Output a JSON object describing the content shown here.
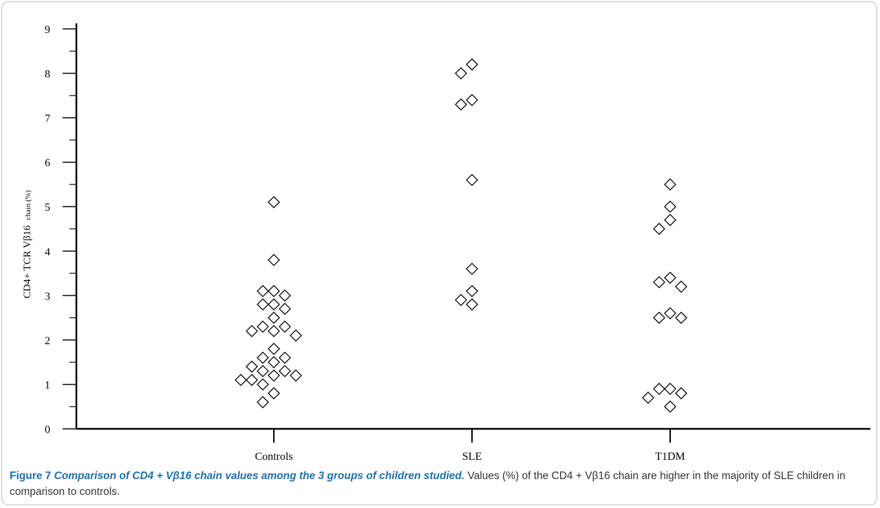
{
  "chart_data": {
    "type": "scatter",
    "title": "",
    "xlabel": "",
    "ylabel": "CD4+ TCR Vβ16 chain (%)",
    "ylabel_parts": {
      "main": "CD4+ TCR Vβ16",
      "sub": "chain (%)"
    },
    "categories": [
      "Controls",
      "SLE",
      "T1DM"
    ],
    "ylim": [
      0,
      9
    ],
    "yticks": [
      0,
      1,
      2,
      3,
      4,
      5,
      6,
      7,
      8,
      9
    ],
    "marker": "open-diamond",
    "points": [
      {
        "group": "Controls",
        "y": 5.1
      },
      {
        "group": "Controls",
        "y": 3.8
      },
      {
        "group": "Controls",
        "y": 3.1
      },
      {
        "group": "Controls",
        "y": 3.1
      },
      {
        "group": "Controls",
        "y": 3.0
      },
      {
        "group": "Controls",
        "y": 2.8
      },
      {
        "group": "Controls",
        "y": 2.8
      },
      {
        "group": "Controls",
        "y": 2.7
      },
      {
        "group": "Controls",
        "y": 2.5
      },
      {
        "group": "Controls",
        "y": 2.3
      },
      {
        "group": "Controls",
        "y": 2.3
      },
      {
        "group": "Controls",
        "y": 2.2
      },
      {
        "group": "Controls",
        "y": 2.2
      },
      {
        "group": "Controls",
        "y": 2.1
      },
      {
        "group": "Controls",
        "y": 1.8
      },
      {
        "group": "Controls",
        "y": 1.6
      },
      {
        "group": "Controls",
        "y": 1.6
      },
      {
        "group": "Controls",
        "y": 1.5
      },
      {
        "group": "Controls",
        "y": 1.4
      },
      {
        "group": "Controls",
        "y": 1.3
      },
      {
        "group": "Controls",
        "y": 1.3
      },
      {
        "group": "Controls",
        "y": 1.2
      },
      {
        "group": "Controls",
        "y": 1.2
      },
      {
        "group": "Controls",
        "y": 1.1
      },
      {
        "group": "Controls",
        "y": 1.1
      },
      {
        "group": "Controls",
        "y": 1.0
      },
      {
        "group": "Controls",
        "y": 0.8
      },
      {
        "group": "Controls",
        "y": 0.6
      },
      {
        "group": "SLE",
        "y": 8.2
      },
      {
        "group": "SLE",
        "y": 8.0
      },
      {
        "group": "SLE",
        "y": 7.4
      },
      {
        "group": "SLE",
        "y": 7.3
      },
      {
        "group": "SLE",
        "y": 5.6
      },
      {
        "group": "SLE",
        "y": 3.6
      },
      {
        "group": "SLE",
        "y": 3.1
      },
      {
        "group": "SLE",
        "y": 2.9
      },
      {
        "group": "SLE",
        "y": 2.8
      },
      {
        "group": "T1DM",
        "y": 5.5
      },
      {
        "group": "T1DM",
        "y": 5.0
      },
      {
        "group": "T1DM",
        "y": 4.7
      },
      {
        "group": "T1DM",
        "y": 4.5
      },
      {
        "group": "T1DM",
        "y": 3.4
      },
      {
        "group": "T1DM",
        "y": 3.3
      },
      {
        "group": "T1DM",
        "y": 3.2
      },
      {
        "group": "T1DM",
        "y": 2.6
      },
      {
        "group": "T1DM",
        "y": 2.5
      },
      {
        "group": "T1DM",
        "y": 2.5
      },
      {
        "group": "T1DM",
        "y": 0.9
      },
      {
        "group": "T1DM",
        "y": 0.9
      },
      {
        "group": "T1DM",
        "y": 0.8
      },
      {
        "group": "T1DM",
        "y": 0.7
      },
      {
        "group": "T1DM",
        "y": 0.5
      }
    ]
  },
  "caption": {
    "label": "Figure 7",
    "title": "Comparison of CD4 + Vβ16 chain values among the 3 groups of children studied.",
    "text": "Values (%) of the CD4 + Vβ16 chain are higher in the majority of SLE children in comparison to controls."
  },
  "colors": {
    "caption_title": "#1f6fa8",
    "caption_text": "#333333",
    "axis": "#000000",
    "frame": "#bfbfbf"
  }
}
